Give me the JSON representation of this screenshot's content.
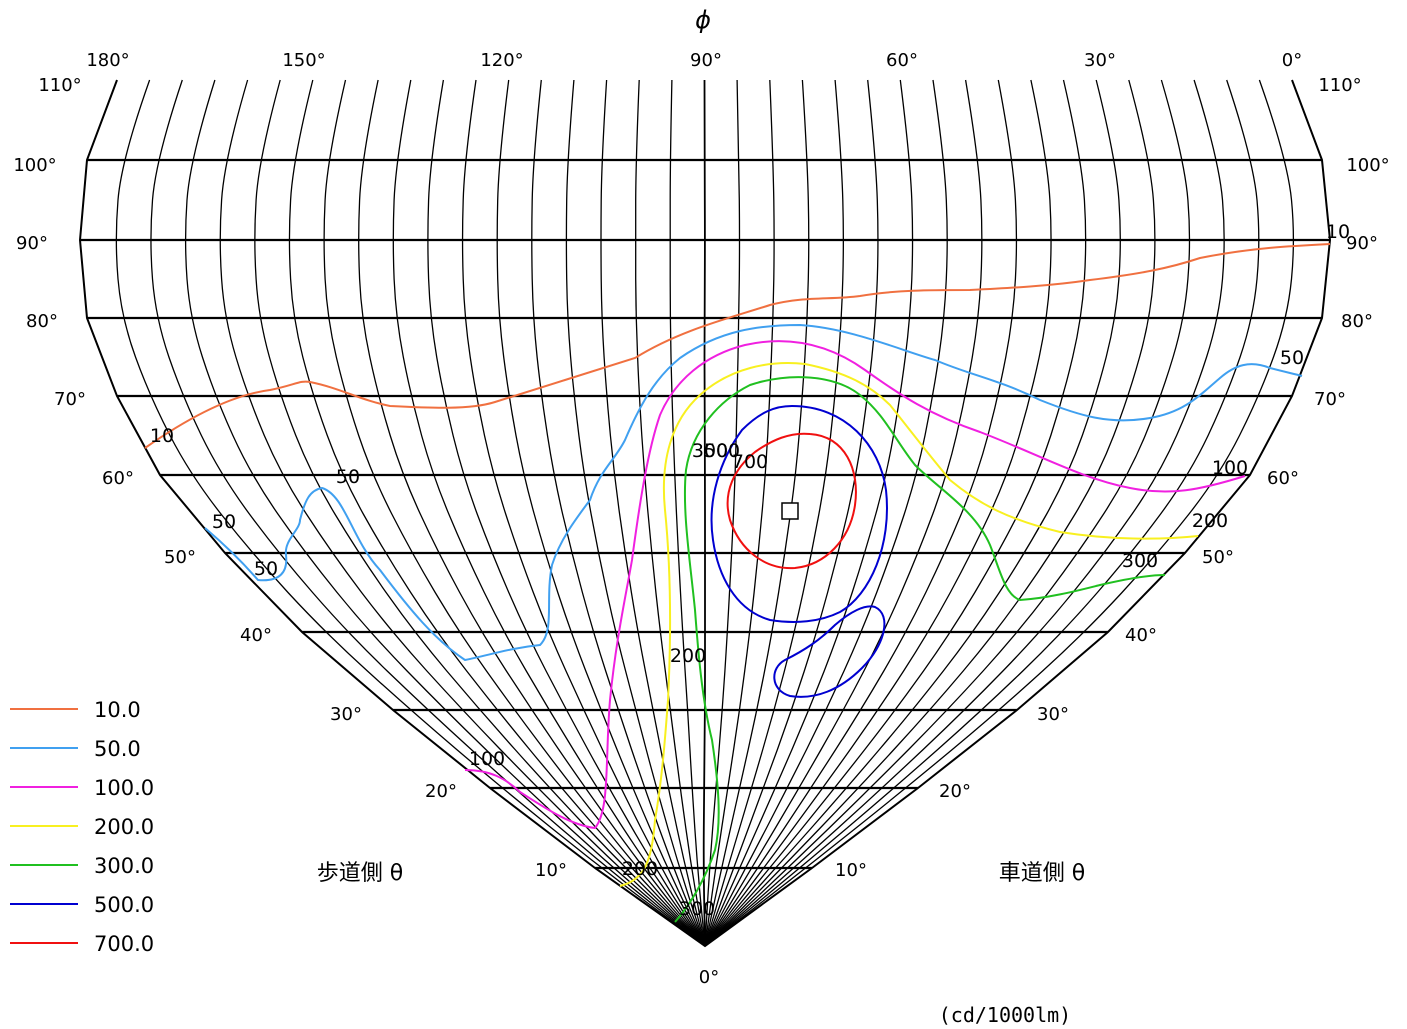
{
  "chart_data": {
    "type": "isocandela",
    "title": "",
    "phi_axis_label": "ϕ",
    "phi_tick_labels": [
      "180°",
      "150°",
      "120°",
      "90°",
      "60°",
      "30°",
      "0°"
    ],
    "theta_tick_labels": [
      "110°",
      "100°",
      "90°",
      "80°",
      "70°",
      "60°",
      "50°",
      "40°",
      "30°",
      "20°",
      "10°",
      "0°"
    ],
    "left_side_label": "歩道側 θ",
    "right_side_label": "車道側 θ",
    "unit_label": "(cd/1000lm)",
    "legend": [
      {
        "label": "10.0",
        "color": "#f07040"
      },
      {
        "label": "50.0",
        "color": "#40a0f0"
      },
      {
        "label": "100.0",
        "color": "#f020e0"
      },
      {
        "label": "200.0",
        "color": "#f8f020"
      },
      {
        "label": "300.0",
        "color": "#20c020"
      },
      {
        "label": "500.0",
        "color": "#0000d0"
      },
      {
        "label": "700.0",
        "color": "#f01010"
      }
    ],
    "contour_labels": [
      "10",
      "10",
      "50",
      "50",
      "50",
      "50",
      "100",
      "100",
      "200",
      "200",
      "200",
      "300",
      "300",
      "300",
      "500",
      "700"
    ],
    "marker": "□"
  }
}
